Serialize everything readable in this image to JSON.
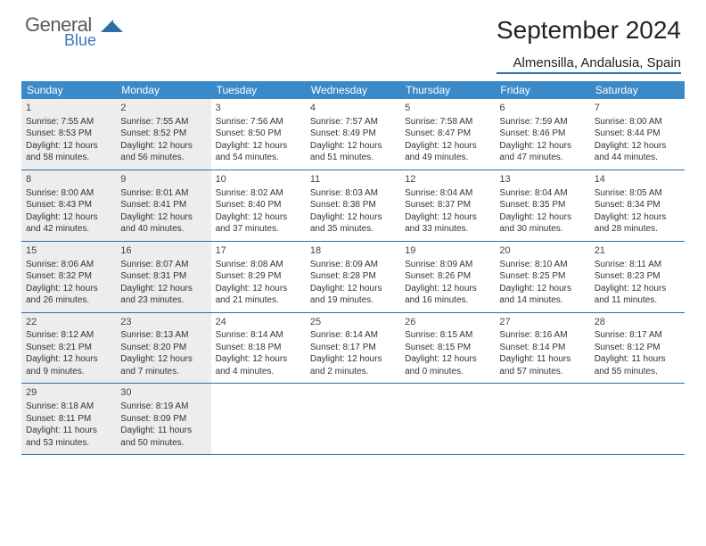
{
  "brand": {
    "word1": "General",
    "word2": "Blue",
    "word1_color": "#5a5a5a",
    "word2_color": "#3a7ab8",
    "mark_color": "#2e6ea6"
  },
  "header": {
    "title": "September 2024",
    "location": "Almensilla, Andalusia, Spain",
    "title_fontsize": 28,
    "location_fontsize": 15
  },
  "style": {
    "header_bg": "#3a89c9",
    "header_fg": "#ffffff",
    "shaded_bg": "#ededed",
    "rule_color": "#2e6ea6",
    "body_fontsize": 10,
    "daynum_fontsize": 11,
    "weekday_fontsize": 12
  },
  "weekdays": [
    "Sunday",
    "Monday",
    "Tuesday",
    "Wednesday",
    "Thursday",
    "Friday",
    "Saturday"
  ],
  "days": [
    {
      "n": "1",
      "sr": "7:55 AM",
      "ss": "8:53 PM",
      "dl": "12 hours and 58 minutes."
    },
    {
      "n": "2",
      "sr": "7:55 AM",
      "ss": "8:52 PM",
      "dl": "12 hours and 56 minutes."
    },
    {
      "n": "3",
      "sr": "7:56 AM",
      "ss": "8:50 PM",
      "dl": "12 hours and 54 minutes."
    },
    {
      "n": "4",
      "sr": "7:57 AM",
      "ss": "8:49 PM",
      "dl": "12 hours and 51 minutes."
    },
    {
      "n": "5",
      "sr": "7:58 AM",
      "ss": "8:47 PM",
      "dl": "12 hours and 49 minutes."
    },
    {
      "n": "6",
      "sr": "7:59 AM",
      "ss": "8:46 PM",
      "dl": "12 hours and 47 minutes."
    },
    {
      "n": "7",
      "sr": "8:00 AM",
      "ss": "8:44 PM",
      "dl": "12 hours and 44 minutes."
    },
    {
      "n": "8",
      "sr": "8:00 AM",
      "ss": "8:43 PM",
      "dl": "12 hours and 42 minutes."
    },
    {
      "n": "9",
      "sr": "8:01 AM",
      "ss": "8:41 PM",
      "dl": "12 hours and 40 minutes."
    },
    {
      "n": "10",
      "sr": "8:02 AM",
      "ss": "8:40 PM",
      "dl": "12 hours and 37 minutes."
    },
    {
      "n": "11",
      "sr": "8:03 AM",
      "ss": "8:38 PM",
      "dl": "12 hours and 35 minutes."
    },
    {
      "n": "12",
      "sr": "8:04 AM",
      "ss": "8:37 PM",
      "dl": "12 hours and 33 minutes."
    },
    {
      "n": "13",
      "sr": "8:04 AM",
      "ss": "8:35 PM",
      "dl": "12 hours and 30 minutes."
    },
    {
      "n": "14",
      "sr": "8:05 AM",
      "ss": "8:34 PM",
      "dl": "12 hours and 28 minutes."
    },
    {
      "n": "15",
      "sr": "8:06 AM",
      "ss": "8:32 PM",
      "dl": "12 hours and 26 minutes."
    },
    {
      "n": "16",
      "sr": "8:07 AM",
      "ss": "8:31 PM",
      "dl": "12 hours and 23 minutes."
    },
    {
      "n": "17",
      "sr": "8:08 AM",
      "ss": "8:29 PM",
      "dl": "12 hours and 21 minutes."
    },
    {
      "n": "18",
      "sr": "8:09 AM",
      "ss": "8:28 PM",
      "dl": "12 hours and 19 minutes."
    },
    {
      "n": "19",
      "sr": "8:09 AM",
      "ss": "8:26 PM",
      "dl": "12 hours and 16 minutes."
    },
    {
      "n": "20",
      "sr": "8:10 AM",
      "ss": "8:25 PM",
      "dl": "12 hours and 14 minutes."
    },
    {
      "n": "21",
      "sr": "8:11 AM",
      "ss": "8:23 PM",
      "dl": "12 hours and 11 minutes."
    },
    {
      "n": "22",
      "sr": "8:12 AM",
      "ss": "8:21 PM",
      "dl": "12 hours and 9 minutes."
    },
    {
      "n": "23",
      "sr": "8:13 AM",
      "ss": "8:20 PM",
      "dl": "12 hours and 7 minutes."
    },
    {
      "n": "24",
      "sr": "8:14 AM",
      "ss": "8:18 PM",
      "dl": "12 hours and 4 minutes."
    },
    {
      "n": "25",
      "sr": "8:14 AM",
      "ss": "8:17 PM",
      "dl": "12 hours and 2 minutes."
    },
    {
      "n": "26",
      "sr": "8:15 AM",
      "ss": "8:15 PM",
      "dl": "12 hours and 0 minutes."
    },
    {
      "n": "27",
      "sr": "8:16 AM",
      "ss": "8:14 PM",
      "dl": "11 hours and 57 minutes."
    },
    {
      "n": "28",
      "sr": "8:17 AM",
      "ss": "8:12 PM",
      "dl": "11 hours and 55 minutes."
    },
    {
      "n": "29",
      "sr": "8:18 AM",
      "ss": "8:11 PM",
      "dl": "11 hours and 53 minutes."
    },
    {
      "n": "30",
      "sr": "8:19 AM",
      "ss": "8:09 PM",
      "dl": "11 hours and 50 minutes."
    }
  ],
  "labels": {
    "sunrise": "Sunrise: ",
    "sunset": "Sunset: ",
    "daylight": "Daylight: "
  },
  "layout": {
    "start_weekday": 0,
    "shaded_weekdays": [
      0,
      1
    ],
    "trailing_empty": 5
  }
}
